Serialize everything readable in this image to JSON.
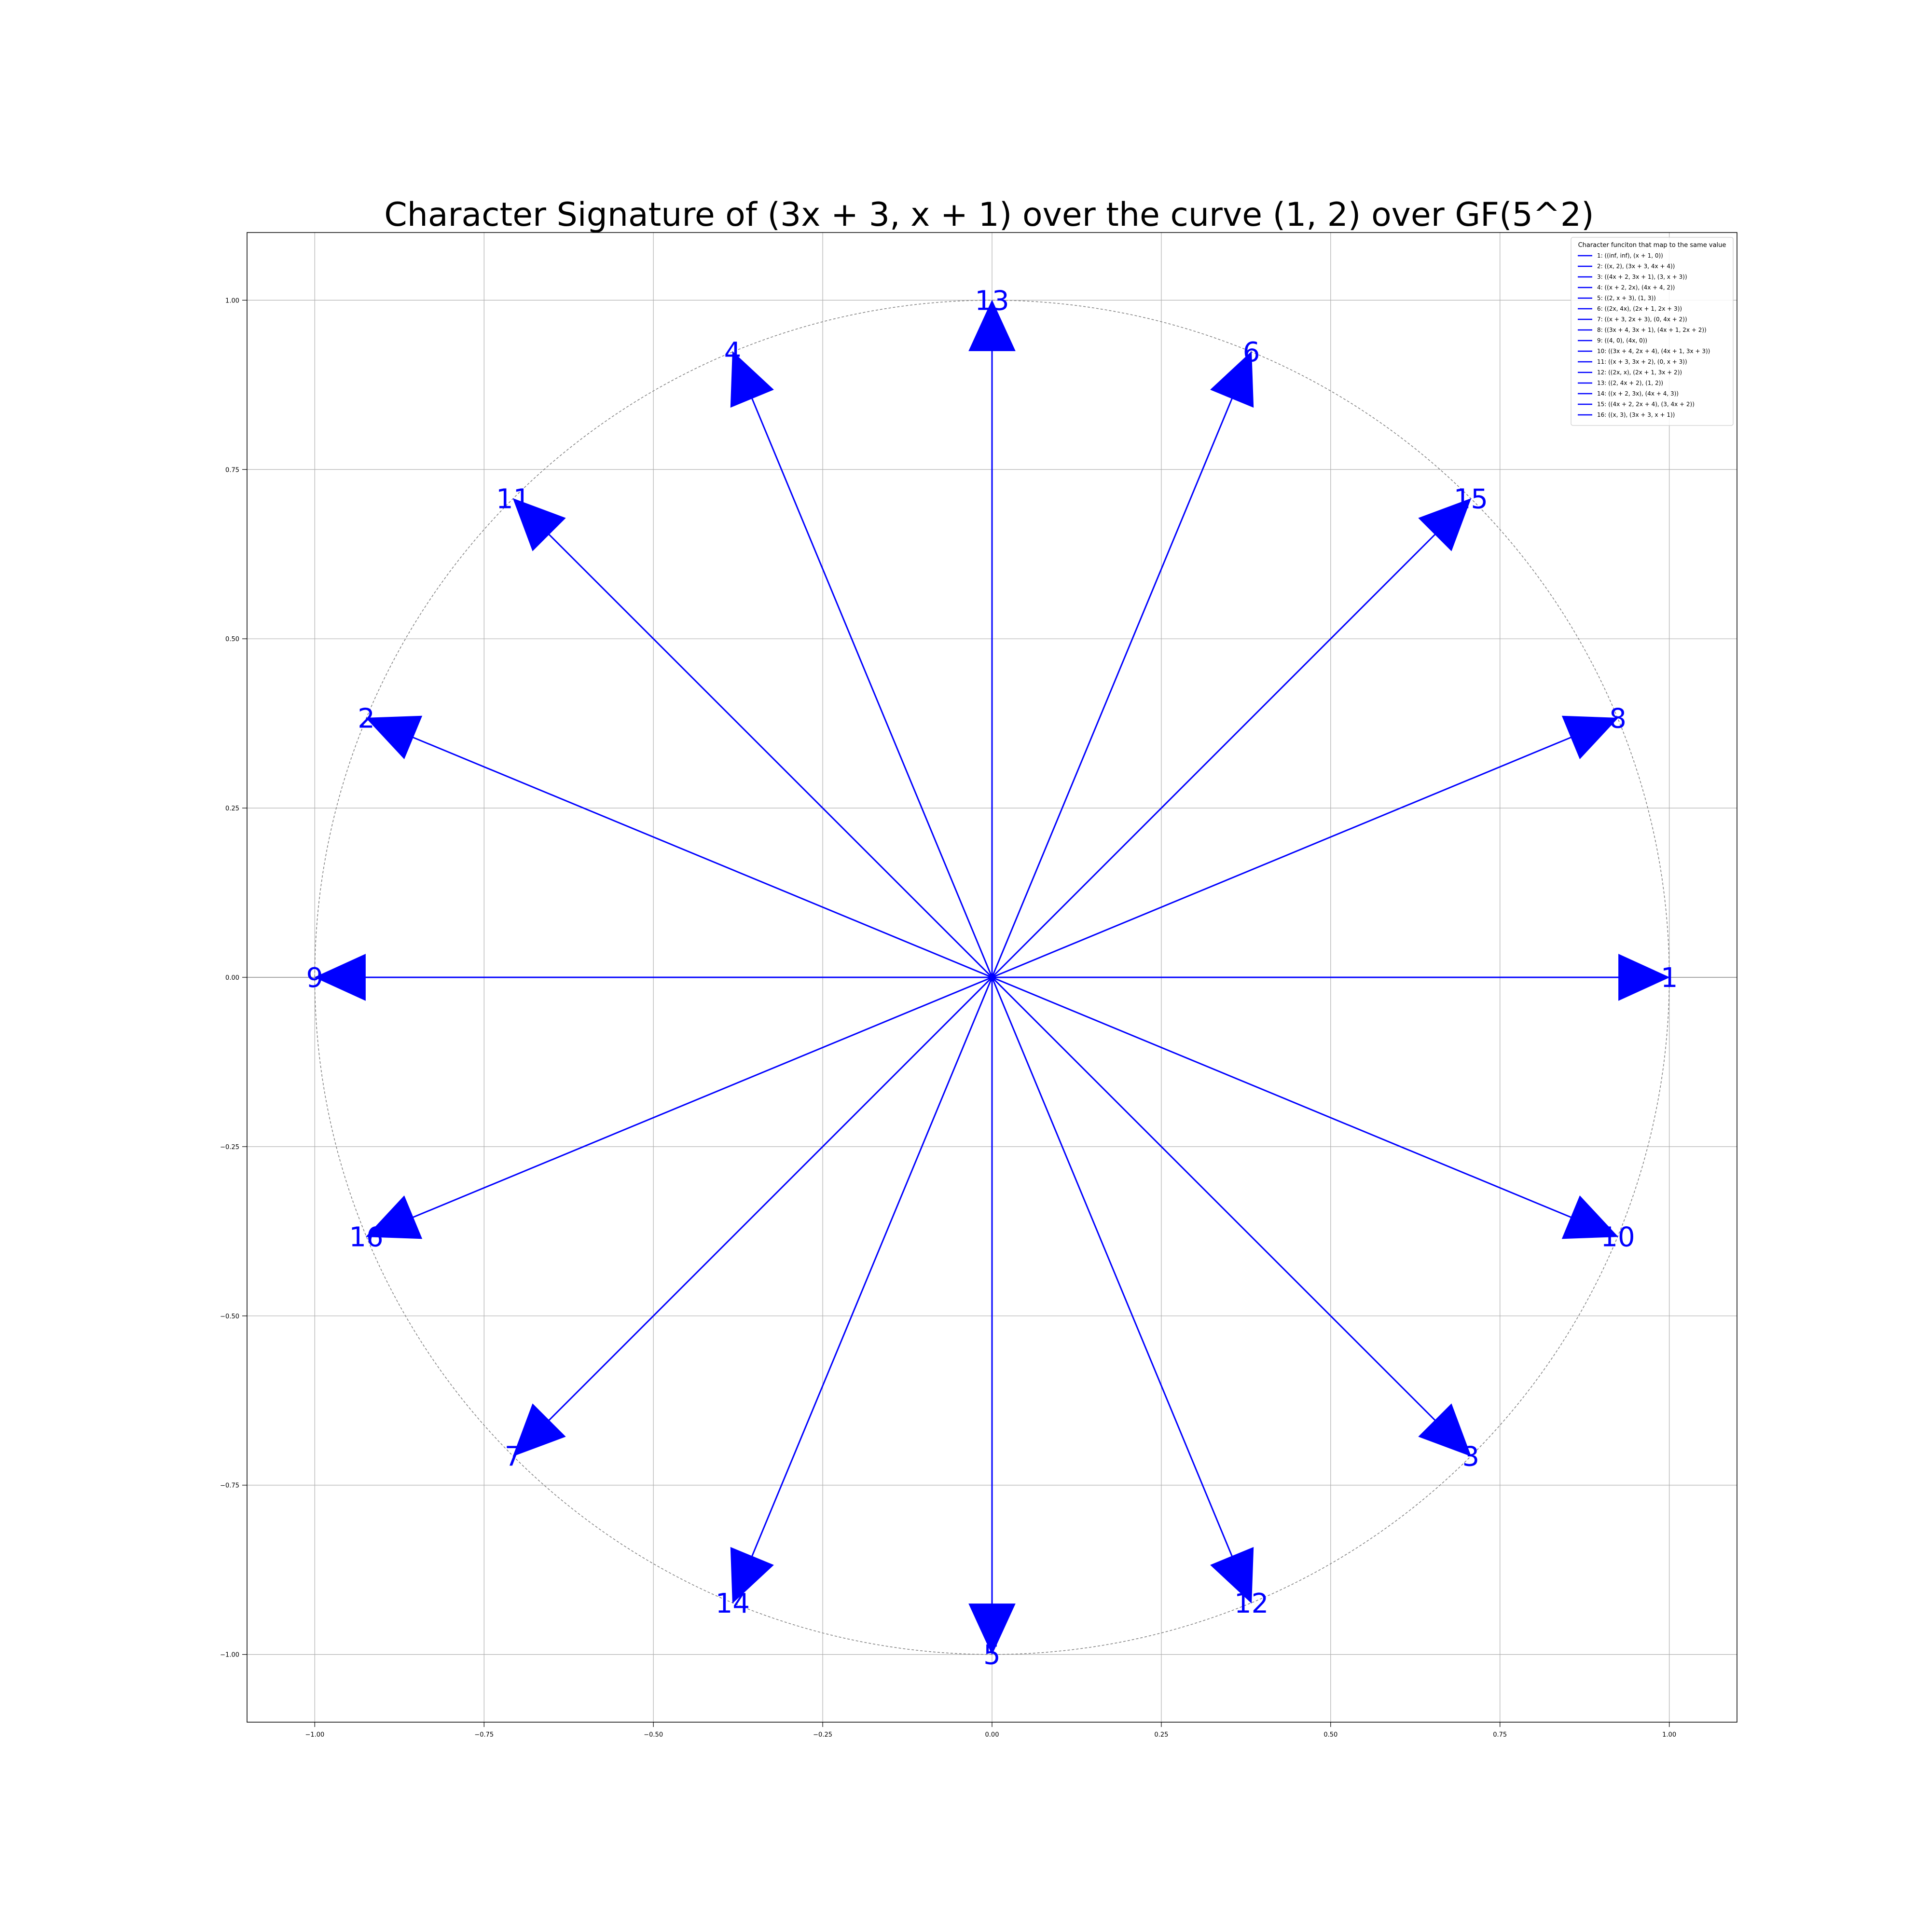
{
  "chart_data": {
    "type": "scatter",
    "title": "Character Signature of (3x + 3, x + 1) over the curve (1, 2) over GF(5^2)",
    "xlabel": "",
    "ylabel": "",
    "xlim": [
      -1.1,
      1.1
    ],
    "ylim": [
      -1.1,
      1.1
    ],
    "x_ticks": [
      -1.0,
      -0.75,
      -0.5,
      -0.25,
      0.0,
      0.25,
      0.5,
      0.75,
      1.0
    ],
    "y_ticks": [
      -1.0,
      -0.75,
      -0.5,
      -0.25,
      0.0,
      0.25,
      0.5,
      0.75,
      1.0
    ],
    "x_tick_labels": [
      "−1.00",
      "−0.75",
      "−0.50",
      "−0.25",
      "0.00",
      "0.25",
      "0.50",
      "0.75",
      "1.00"
    ],
    "y_tick_labels": [
      "−1.00",
      "−0.75",
      "−0.50",
      "−0.25",
      "0.00",
      "0.25",
      "0.50",
      "0.75",
      "1.00"
    ],
    "grid": true,
    "unit_circle": true,
    "vector_color": "#0000ff",
    "legend_title": "Character funciton that map to the same value",
    "legend_position": "top-right",
    "vectors": [
      {
        "label": "1",
        "x": 1.0,
        "y": 0.0,
        "legend": "1: ((inf, inf), (x + 1, 0))"
      },
      {
        "label": "2",
        "x": -0.924,
        "y": 0.383,
        "legend": "2: ((x, 2), (3x + 3, 4x + 4))"
      },
      {
        "label": "3",
        "x": 0.707,
        "y": -0.707,
        "legend": "3: ((4x + 2, 3x + 1), (3, x + 3))"
      },
      {
        "label": "4",
        "x": -0.383,
        "y": 0.924,
        "legend": "4: ((x + 2, 2x), (4x + 4, 2))"
      },
      {
        "label": "5",
        "x": 0.0,
        "y": -1.0,
        "legend": "5: ((2, x + 3), (1, 3))"
      },
      {
        "label": "6",
        "x": 0.383,
        "y": 0.924,
        "legend": "6: ((2x, 4x), (2x + 1, 2x + 3))"
      },
      {
        "label": "7",
        "x": -0.707,
        "y": -0.707,
        "legend": "7: ((x + 3, 2x + 3), (0, 4x + 2))"
      },
      {
        "label": "8",
        "x": 0.924,
        "y": 0.383,
        "legend": "8: ((3x + 4, 3x + 1), (4x + 1, 2x + 2))"
      },
      {
        "label": "9",
        "x": -1.0,
        "y": 0.0,
        "legend": "9: ((4, 0), (4x, 0))"
      },
      {
        "label": "10",
        "x": 0.924,
        "y": -0.383,
        "legend": "10: ((3x + 4, 2x + 4), (4x + 1, 3x + 3))"
      },
      {
        "label": "11",
        "x": -0.707,
        "y": 0.707,
        "legend": "11: ((x + 3, 3x + 2), (0, x + 3))"
      },
      {
        "label": "12",
        "x": 0.383,
        "y": -0.924,
        "legend": "12: ((2x, x), (2x + 1, 3x + 2))"
      },
      {
        "label": "13",
        "x": 0.0,
        "y": 1.0,
        "legend": "13: ((2, 4x + 2), (1, 2))"
      },
      {
        "label": "14",
        "x": -0.383,
        "y": -0.924,
        "legend": "14: ((x + 2, 3x), (4x + 4, 3))"
      },
      {
        "label": "15",
        "x": 0.707,
        "y": 0.707,
        "legend": "15: ((4x + 2, 2x + 4), (3, 4x + 2))"
      },
      {
        "label": "16",
        "x": -0.924,
        "y": -0.383,
        "legend": "16: ((x, 3), (3x + 3, x + 1))"
      }
    ]
  }
}
